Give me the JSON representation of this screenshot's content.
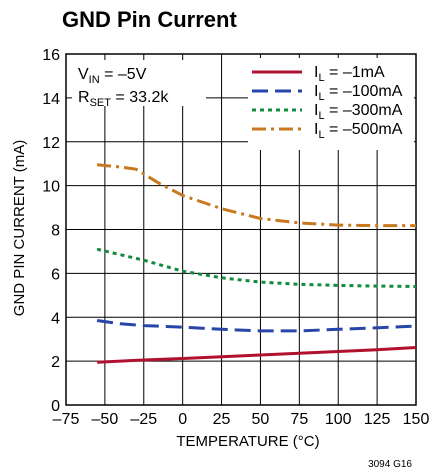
{
  "chart_data": {
    "type": "line",
    "title": "GND Pin Current",
    "xlabel": "TEMPERATURE (°C)",
    "ylabel": "GND PIN CURRENT (mA)",
    "xlim": [
      -75,
      150
    ],
    "ylim": [
      0,
      16
    ],
    "xticks": [
      -75,
      -50,
      -25,
      0,
      25,
      50,
      75,
      100,
      125,
      150
    ],
    "yticks": [
      0,
      2,
      4,
      6,
      8,
      10,
      12,
      14,
      16
    ],
    "xtick_labels": [
      "–75",
      "–50",
      "–25",
      "0",
      "25",
      "50",
      "75",
      "100",
      "125",
      "150"
    ],
    "ytick_labels": [
      "0",
      "2",
      "4",
      "6",
      "8",
      "10",
      "12",
      "14",
      "16"
    ],
    "grid": true,
    "legend_position": "top-right",
    "annotations": [
      {
        "main": "V",
        "sub": "IN",
        "rest": " = –5V"
      },
      {
        "main": "R",
        "sub": "SET",
        "rest": " = 33.2k"
      }
    ],
    "figure_id": "3094 G16",
    "series": [
      {
        "legend_main": "I",
        "legend_sub": "L",
        "legend_rest": " = –1mA",
        "color": "#b0112e",
        "dash": "solid",
        "x": [
          -55,
          -25,
          0,
          25,
          50,
          75,
          100,
          125,
          150
        ],
        "y": [
          1.95,
          2.05,
          2.12,
          2.2,
          2.28,
          2.36,
          2.44,
          2.52,
          2.62
        ]
      },
      {
        "legend_main": "I",
        "legend_sub": "L",
        "legend_rest": " = –100mA",
        "color": "#2746a8",
        "dash": "long",
        "x": [
          -55,
          -40,
          -25,
          0,
          25,
          50,
          75,
          100,
          125,
          150
        ],
        "y": [
          3.85,
          3.7,
          3.62,
          3.55,
          3.45,
          3.38,
          3.38,
          3.45,
          3.52,
          3.6
        ]
      },
      {
        "legend_main": "I",
        "legend_sub": "L",
        "legend_rest": " = –300mA",
        "color": "#138a3e",
        "dash": "dot",
        "x": [
          -55,
          -40,
          -25,
          0,
          25,
          50,
          75,
          100,
          125,
          150
        ],
        "y": [
          7.1,
          6.85,
          6.6,
          6.1,
          5.8,
          5.6,
          5.5,
          5.45,
          5.42,
          5.4
        ]
      },
      {
        "legend_main": "I",
        "legend_sub": "L",
        "legend_rest": " = –500mA",
        "color": "#c8781e",
        "dash": "dashdot",
        "x": [
          -55,
          -40,
          -30,
          -15,
          0,
          25,
          50,
          75,
          100,
          125,
          150
        ],
        "y": [
          10.95,
          10.85,
          10.75,
          10.1,
          9.55,
          8.95,
          8.5,
          8.3,
          8.2,
          8.18,
          8.18
        ]
      }
    ]
  }
}
